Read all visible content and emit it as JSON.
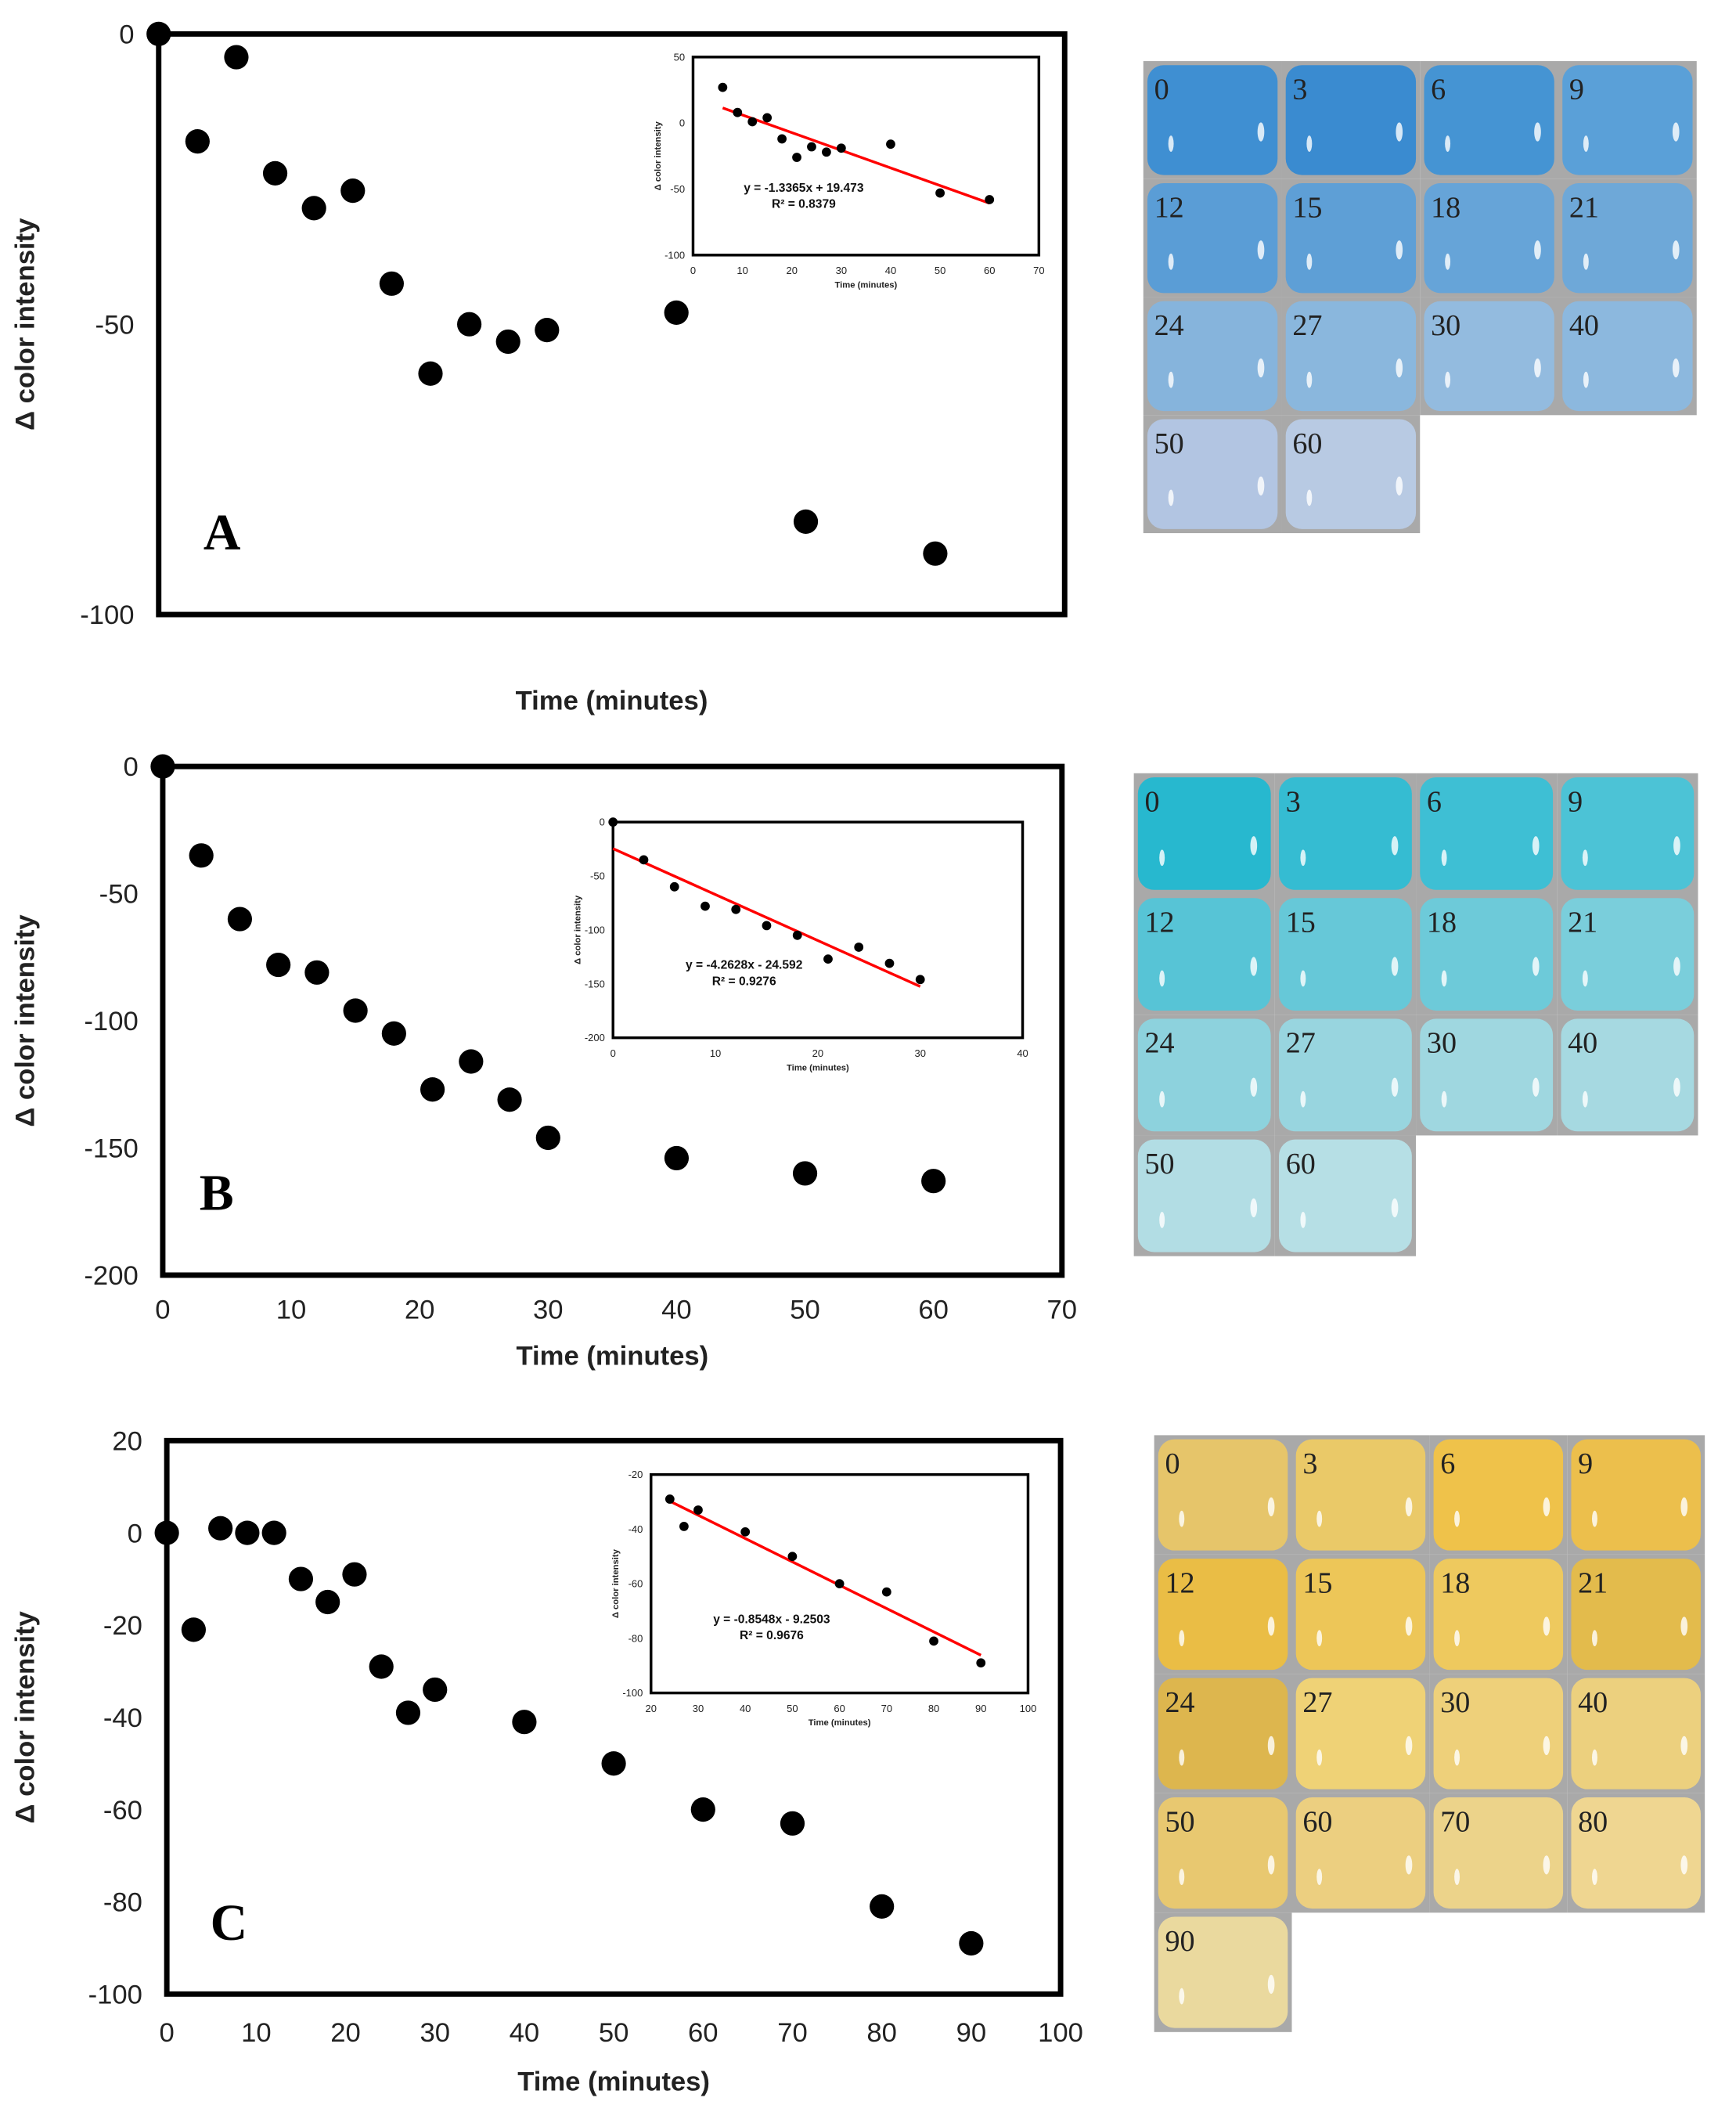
{
  "chart_data": [
    {
      "type": "scatter",
      "panel_label": "A",
      "xlabel": "Time (minutes)",
      "ylabel": "Δ color intensity",
      "xlim": [
        0,
        70
      ],
      "ylim": [
        -100,
        0
      ],
      "xticks": [],
      "yticks": [
        0,
        -50,
        -100
      ],
      "x": [
        0,
        3,
        6,
        9,
        12,
        15,
        18,
        21,
        24,
        27,
        30,
        40,
        50,
        60
      ],
      "y": [
        0,
        -18.5,
        -4,
        -24,
        -30,
        -27,
        -43,
        -58.5,
        -50,
        -53,
        -51,
        -48,
        -84,
        -89.5
      ],
      "inset": {
        "type": "scatter",
        "xlabel": "Time (minutes)",
        "ylabel": "Δ color intensity",
        "xlim": [
          0,
          70
        ],
        "ylim": [
          -100,
          50
        ],
        "xticks": [
          0,
          10,
          20,
          30,
          40,
          50,
          60,
          70
        ],
        "yticks": [
          50,
          0,
          -50,
          -100
        ],
        "x": [
          6,
          9,
          12,
          15,
          18,
          21,
          24,
          27,
          30,
          40,
          50,
          60
        ],
        "y": [
          27,
          8,
          1,
          4,
          -12,
          -26,
          -18,
          -22,
          -19,
          -16,
          -53,
          -58
        ],
        "fit": {
          "slope": -1.3365,
          "intercept": 19.473,
          "x_range": [
            6,
            60
          ]
        },
        "equation": "y = -1.3365x + 19.473",
        "r2": "R² = 0.8379"
      },
      "swatches": {
        "labels": [
          "0",
          "3",
          "6",
          "9",
          "12",
          "15",
          "18",
          "21",
          "24",
          "27",
          "30",
          "40",
          "50",
          "60"
        ],
        "colors": [
          "#3f8fd2",
          "#3a8bd0",
          "#4594d3",
          "#5aa0d8",
          "#5a9dd6",
          "#5e9fd6",
          "#66a4d8",
          "#6ea8d8",
          "#86b4dc",
          "#8ab7dd",
          "#93bbdf",
          "#8cb8de",
          "#b2c5e2",
          "#b8cae3"
        ]
      }
    },
    {
      "type": "scatter",
      "panel_label": "B",
      "xlabel": "Time (minutes)",
      "ylabel": "Δ color intensity",
      "xlim": [
        0,
        70
      ],
      "ylim": [
        -200,
        0
      ],
      "xticks": [
        0,
        10,
        20,
        30,
        40,
        50,
        60,
        70
      ],
      "yticks": [
        0,
        -50,
        -100,
        -150,
        -200
      ],
      "x": [
        0,
        3,
        6,
        9,
        12,
        15,
        18,
        21,
        24,
        27,
        30,
        40,
        50,
        60
      ],
      "y": [
        0,
        -35,
        -60,
        -78,
        -81,
        -96,
        -105,
        -127,
        -116,
        -131,
        -146,
        -154,
        -160,
        -163
      ],
      "inset": {
        "type": "scatter",
        "xlabel": "Time (minutes)",
        "ylabel": "Δ color intensity",
        "xlim": [
          0,
          40
        ],
        "ylim": [
          -200,
          0
        ],
        "xticks": [
          0,
          10,
          20,
          30,
          40
        ],
        "yticks": [
          0,
          -50,
          -100,
          -150,
          -200
        ],
        "x": [
          0,
          3,
          6,
          9,
          12,
          15,
          18,
          21,
          24,
          27,
          30
        ],
        "y": [
          0,
          -35,
          -60,
          -78,
          -81,
          -96,
          -105,
          -127,
          -116,
          -131,
          -146
        ],
        "fit": {
          "slope": -4.2628,
          "intercept": -24.592,
          "x_range": [
            0,
            30
          ]
        },
        "equation": "y = -4.2628x - 24.592",
        "r2": "R² = 0.9276"
      },
      "swatches": {
        "labels": [
          "0",
          "3",
          "6",
          "9",
          "12",
          "15",
          "18",
          "21",
          "24",
          "27",
          "30",
          "40",
          "50",
          "60"
        ],
        "colors": [
          "#27b8cf",
          "#35bcd2",
          "#3ebfd4",
          "#4cc3d6",
          "#57c4d6",
          "#66c8d8",
          "#6dcad9",
          "#7acedb",
          "#8dd2dd",
          "#98d5df",
          "#9fd7e0",
          "#a6d9e1",
          "#b2dde4",
          "#b6dfe5"
        ]
      }
    },
    {
      "type": "scatter",
      "panel_label": "C",
      "xlabel": "Time (minutes)",
      "ylabel": "Δ color intensity",
      "xlim": [
        0,
        100
      ],
      "ylim": [
        -100,
        20
      ],
      "xticks": [
        0,
        10,
        20,
        30,
        40,
        50,
        60,
        70,
        80,
        90,
        100
      ],
      "yticks": [
        20,
        0,
        -20,
        -40,
        -60,
        -80,
        -100
      ],
      "x": [
        0,
        3,
        6,
        9,
        12,
        15,
        18,
        21,
        24,
        27,
        30,
        40,
        50,
        60,
        70,
        80,
        90
      ],
      "y": [
        0,
        -21,
        1,
        0,
        0,
        -10,
        -15,
        -9,
        -29,
        -39,
        -34,
        -41,
        -50,
        -60,
        -63,
        -81,
        -89
      ],
      "inset": {
        "type": "scatter",
        "xlabel": "Time (minutes)",
        "ylabel": "Δ color intensity",
        "xlim": [
          20,
          100
        ],
        "ylim": [
          -100,
          -20
        ],
        "xticks": [
          20,
          30,
          40,
          50,
          60,
          70,
          80,
          90,
          100
        ],
        "yticks": [
          -20,
          -40,
          -60,
          -80,
          -100
        ],
        "x": [
          24,
          27,
          30,
          40,
          50,
          60,
          70,
          80,
          90
        ],
        "y": [
          -29,
          -39,
          -33,
          -41,
          -50,
          -60,
          -63,
          -81,
          -89
        ],
        "fit": {
          "slope": -0.8548,
          "intercept": -9.2503,
          "x_range": [
            24,
            90
          ]
        },
        "equation": "y = -0.8548x - 9.2503",
        "r2": "R² = 0.9676"
      },
      "swatches": {
        "labels": [
          "0",
          "3",
          "6",
          "9",
          "12",
          "15",
          "18",
          "21",
          "24",
          "27",
          "30",
          "40",
          "50",
          "60",
          "70",
          "80",
          "90"
        ],
        "colors": [
          "#e6c56a",
          "#eac968",
          "#efc24a",
          "#ecbf4c",
          "#eabd45",
          "#edc658",
          "#eec95e",
          "#e3bb4c",
          "#ddb64e",
          "#efd276",
          "#eed07a",
          "#ecd07e",
          "#e8c870",
          "#eccf80",
          "#ecd38a",
          "#efd691",
          "#ead99e"
        ]
      }
    }
  ],
  "colors": {
    "marker": "#000000",
    "fit_line": "#ff0000",
    "swatch_bg": "#a9a9a9"
  }
}
